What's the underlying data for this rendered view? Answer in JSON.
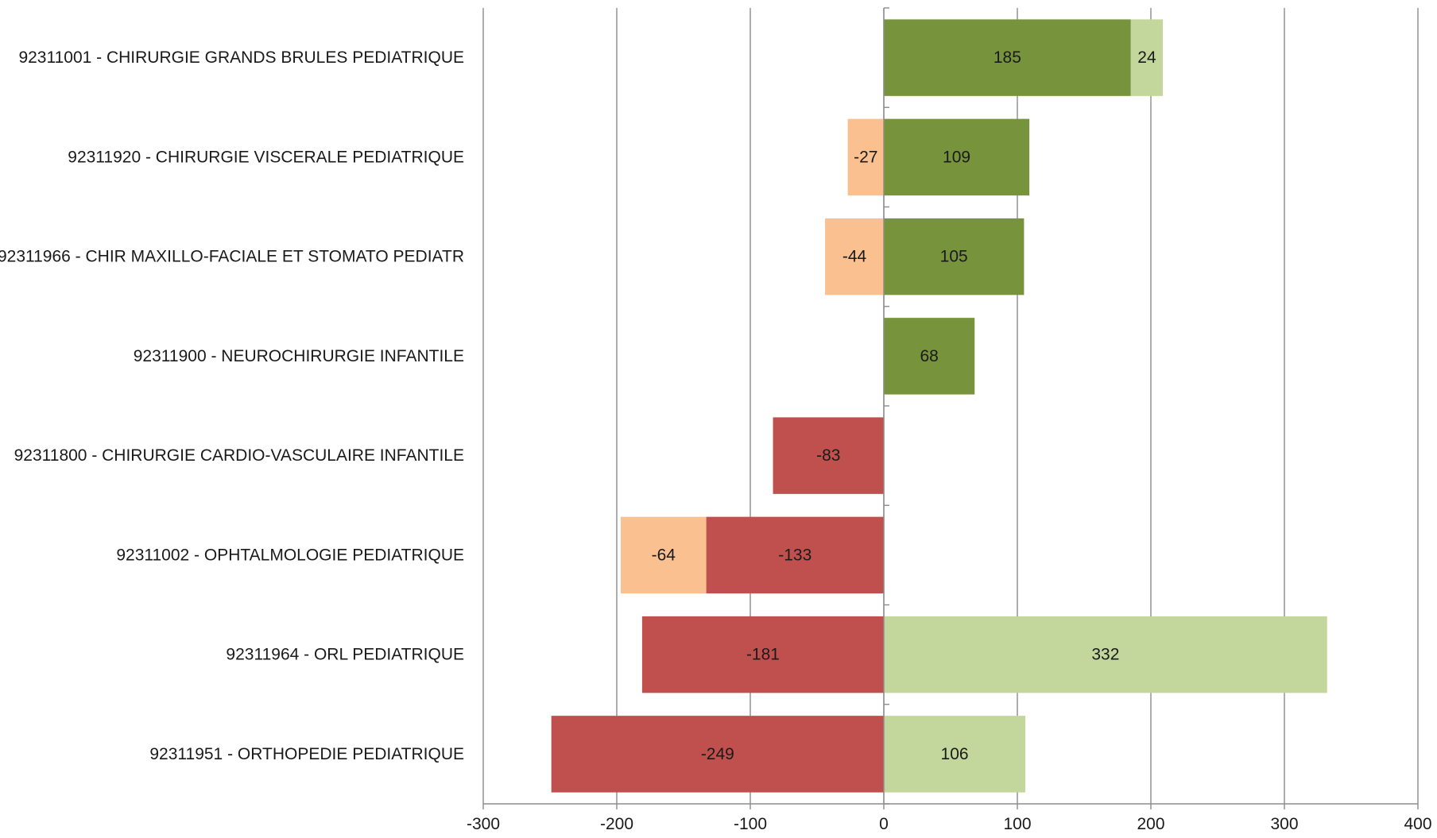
{
  "chart_data": {
    "type": "bar",
    "orientation": "horizontal",
    "stacked": true,
    "title": "",
    "xlabel": "",
    "ylabel": "",
    "xlim": [
      -300,
      400
    ],
    "xticks": [
      -300,
      -200,
      -100,
      0,
      100,
      200,
      300,
      400
    ],
    "xtick_labels": [
      "-300",
      "-200",
      "-100",
      "0",
      "100",
      "200",
      "300",
      "400"
    ],
    "grid": "vertical",
    "legend": "none",
    "categories": [
      "92311001 - CHIRURGIE GRANDS BRULES PEDIATRIQUE",
      "92311920 - CHIRURGIE VISCERALE PEDIATRIQUE",
      "92311966 - CHIR MAXILLO-FACIALE ET STOMATO PEDIATR",
      "92311900 - NEUROCHIRURGIE INFANTILE",
      "92311800 - CHIRURGIE CARDIO-VASCULAIRE INFANTILE",
      "92311002 - OPHTALMOLOGIE PEDIATRIQUE",
      "92311964 - ORL PEDIATRIQUE",
      "92311951 - ORTHOPEDIE PEDIATRIQUE"
    ],
    "series": [
      {
        "color": "#c0504d",
        "values": [
          null,
          null,
          null,
          null,
          -83,
          -133,
          -181,
          -249
        ],
        "labels": [
          "",
          "",
          "",
          "",
          "-83",
          "-133",
          "-181",
          "-249"
        ]
      },
      {
        "color": "#fac090",
        "values": [
          null,
          -27,
          -44,
          null,
          null,
          -64,
          null,
          null
        ],
        "labels": [
          "",
          "-27",
          "-44",
          "",
          "",
          "-64",
          "",
          ""
        ]
      },
      {
        "color": "#77933c",
        "values": [
          185,
          109,
          105,
          68,
          null,
          null,
          null,
          null
        ],
        "labels": [
          "185",
          "109",
          "105",
          "68",
          "",
          "",
          "",
          ""
        ]
      },
      {
        "color": "#c3d69b",
        "values": [
          24,
          null,
          null,
          null,
          null,
          null,
          332,
          106
        ],
        "labels": [
          "24",
          "",
          "",
          "",
          "",
          "",
          "332",
          "106"
        ]
      }
    ],
    "colors": {
      "gridline": "#8c8c8c",
      "axis": "#8c8c8c",
      "text": "#1a1a1a"
    }
  }
}
